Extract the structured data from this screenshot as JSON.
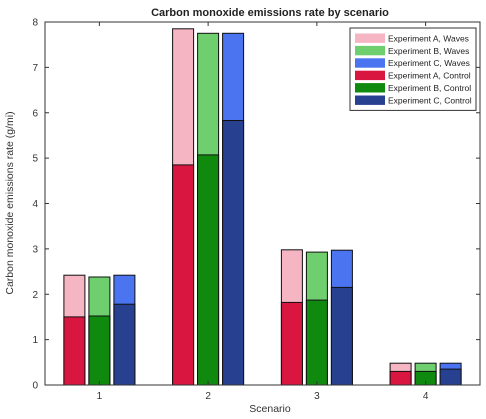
{
  "chart_data": {
    "type": "bar",
    "title": "Carbon monoxide emissions rate by scenario",
    "xlabel": "Scenario",
    "ylabel": "Carbon monoxide emissions rate (g/mi)",
    "categories": [
      "1",
      "2",
      "3",
      "4"
    ],
    "ylim": [
      0,
      8
    ],
    "yticks": [
      0,
      1,
      2,
      3,
      4,
      5,
      6,
      7,
      8
    ],
    "grid": false,
    "legend_position": "top-right",
    "series": [
      {
        "name": "Experiment A, Waves",
        "group": "A",
        "layer": "waves",
        "color": "#f6b5c2",
        "values": [
          2.42,
          7.85,
          2.98,
          0.48
        ]
      },
      {
        "name": "Experiment B, Waves",
        "group": "B",
        "layer": "waves",
        "color": "#6fcf6f",
        "values": [
          2.38,
          7.75,
          2.93,
          0.48
        ]
      },
      {
        "name": "Experiment C, Waves",
        "group": "C",
        "layer": "waves",
        "color": "#4a74f0",
        "values": [
          2.42,
          7.75,
          2.97,
          0.48
        ]
      },
      {
        "name": "Experiment A, Control",
        "group": "A",
        "layer": "control",
        "color": "#d9163f",
        "values": [
          1.5,
          4.85,
          1.82,
          0.3
        ]
      },
      {
        "name": "Experiment B, Control",
        "group": "B",
        "layer": "control",
        "color": "#0f8a0f",
        "values": [
          1.52,
          5.07,
          1.87,
          0.3
        ]
      },
      {
        "name": "Experiment C, Control",
        "group": "C",
        "layer": "control",
        "color": "#27408f",
        "values": [
          1.78,
          5.83,
          2.15,
          0.35
        ]
      }
    ]
  }
}
